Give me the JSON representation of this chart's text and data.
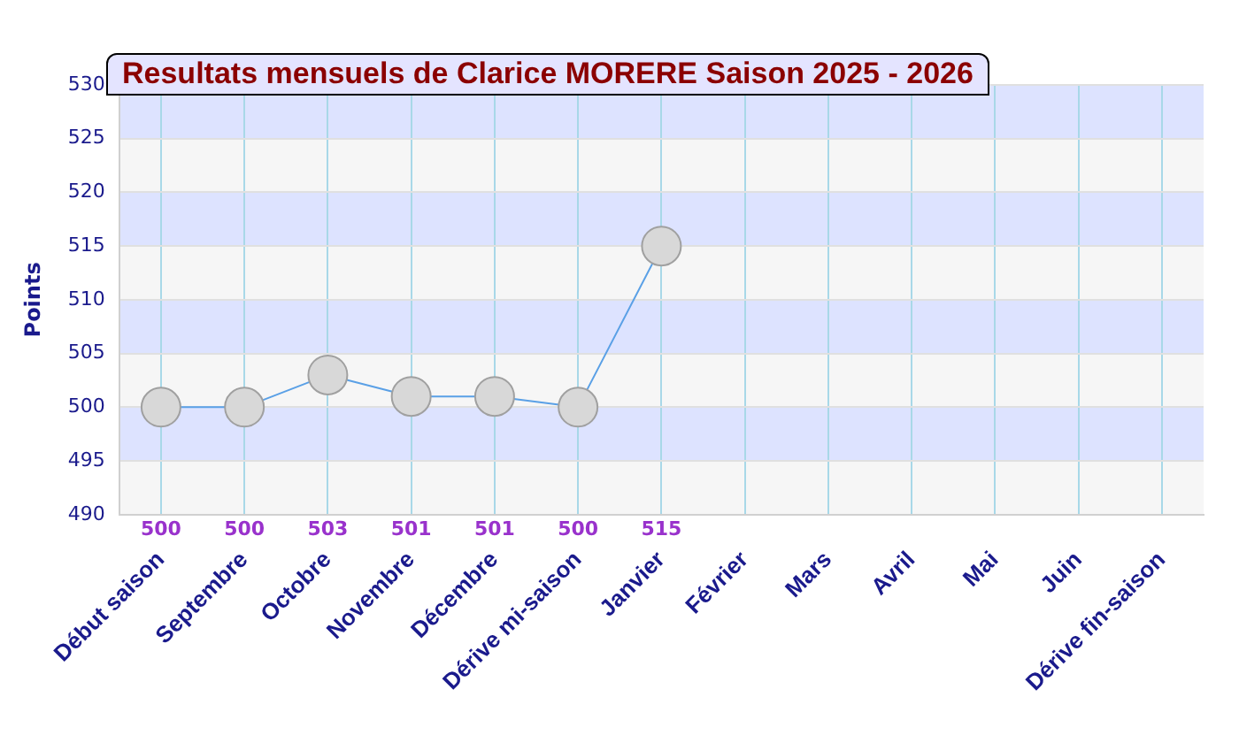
{
  "chart_data": {
    "type": "line",
    "title": "Resultats mensuels de Clarice MORERE Saison 2025 - 2026",
    "ylabel": "Points",
    "categories": [
      "Début saison",
      "Septembre",
      "Octobre",
      "Novembre",
      "Décembre",
      "Dérive mi-saison",
      "Janvier",
      "Février",
      "Mars",
      "Avril",
      "Mai",
      "Juin",
      "Dérive fin-saison"
    ],
    "series": [
      {
        "color": "#5aa0e6",
        "values": [
          500,
          500,
          503,
          501,
          501,
          500,
          515,
          null,
          null,
          null,
          null,
          null,
          null
        ]
      }
    ],
    "ylim": [
      490,
      530
    ],
    "yticks": [
      490,
      495,
      500,
      505,
      510,
      515,
      520,
      525,
      530
    ],
    "grid": true,
    "legend": false,
    "marker": "circle",
    "line_style": "solid",
    "data_labels": true
  }
}
